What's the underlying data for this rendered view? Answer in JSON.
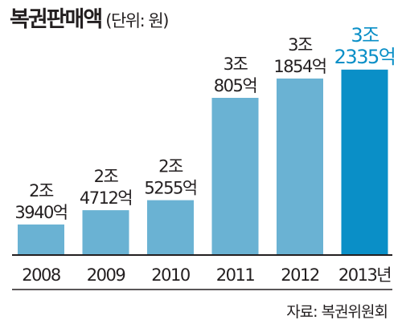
{
  "chart_data": {
    "type": "bar",
    "title": "복권판매액",
    "unit": "(단위: 원)",
    "categories": [
      "2008",
      "2009",
      "2010",
      "2011",
      "2012",
      "2013년"
    ],
    "values": [
      2.394,
      2.4712,
      2.5255,
      3.0805,
      3.1854,
      3.2335
    ],
    "value_unit": "조 원",
    "data_labels": [
      [
        "2조",
        "3940억"
      ],
      [
        "2조",
        "4712억"
      ],
      [
        "2조",
        "5255억"
      ],
      [
        "3조",
        "805억"
      ],
      [
        "3조",
        "1854억"
      ],
      [
        "3조",
        "2335억"
      ]
    ],
    "highlight_index": 5,
    "colors": {
      "bar": "#6ab2d3",
      "highlight": "#0a8fc7",
      "label": "#231f20",
      "axis": "#231f20"
    },
    "grid": false,
    "legend": "none"
  },
  "source": "자료: 복권위원회"
}
